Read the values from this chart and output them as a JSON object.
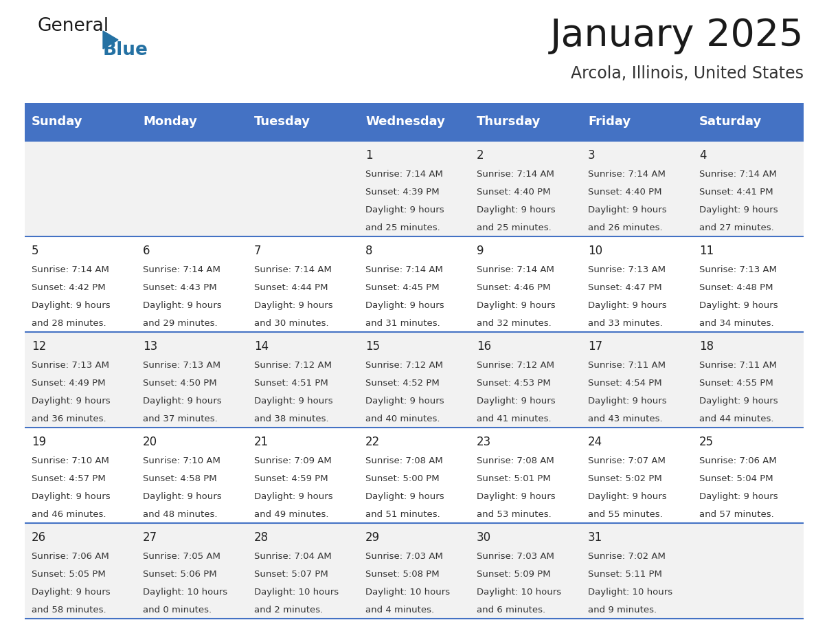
{
  "title": "January 2025",
  "subtitle": "Arcola, Illinois, United States",
  "header_bg": "#4472C4",
  "header_text_color": "#FFFFFF",
  "days_of_week": [
    "Sunday",
    "Monday",
    "Tuesday",
    "Wednesday",
    "Thursday",
    "Friday",
    "Saturday"
  ],
  "cell_bg_odd": "#F2F2F2",
  "cell_bg_even": "#FFFFFF",
  "separator_color": "#4472C4",
  "calendar": [
    [
      {
        "day": "",
        "sunrise": "",
        "sunset": "",
        "daylight": ""
      },
      {
        "day": "",
        "sunrise": "",
        "sunset": "",
        "daylight": ""
      },
      {
        "day": "",
        "sunrise": "",
        "sunset": "",
        "daylight": ""
      },
      {
        "day": "1",
        "sunrise": "7:14 AM",
        "sunset": "4:39 PM",
        "daylight": "9 hours and 25 minutes."
      },
      {
        "day": "2",
        "sunrise": "7:14 AM",
        "sunset": "4:40 PM",
        "daylight": "9 hours and 25 minutes."
      },
      {
        "day": "3",
        "sunrise": "7:14 AM",
        "sunset": "4:40 PM",
        "daylight": "9 hours and 26 minutes."
      },
      {
        "day": "4",
        "sunrise": "7:14 AM",
        "sunset": "4:41 PM",
        "daylight": "9 hours and 27 minutes."
      }
    ],
    [
      {
        "day": "5",
        "sunrise": "7:14 AM",
        "sunset": "4:42 PM",
        "daylight": "9 hours and 28 minutes."
      },
      {
        "day": "6",
        "sunrise": "7:14 AM",
        "sunset": "4:43 PM",
        "daylight": "9 hours and 29 minutes."
      },
      {
        "day": "7",
        "sunrise": "7:14 AM",
        "sunset": "4:44 PM",
        "daylight": "9 hours and 30 minutes."
      },
      {
        "day": "8",
        "sunrise": "7:14 AM",
        "sunset": "4:45 PM",
        "daylight": "9 hours and 31 minutes."
      },
      {
        "day": "9",
        "sunrise": "7:14 AM",
        "sunset": "4:46 PM",
        "daylight": "9 hours and 32 minutes."
      },
      {
        "day": "10",
        "sunrise": "7:13 AM",
        "sunset": "4:47 PM",
        "daylight": "9 hours and 33 minutes."
      },
      {
        "day": "11",
        "sunrise": "7:13 AM",
        "sunset": "4:48 PM",
        "daylight": "9 hours and 34 minutes."
      }
    ],
    [
      {
        "day": "12",
        "sunrise": "7:13 AM",
        "sunset": "4:49 PM",
        "daylight": "9 hours and 36 minutes."
      },
      {
        "day": "13",
        "sunrise": "7:13 AM",
        "sunset": "4:50 PM",
        "daylight": "9 hours and 37 minutes."
      },
      {
        "day": "14",
        "sunrise": "7:12 AM",
        "sunset": "4:51 PM",
        "daylight": "9 hours and 38 minutes."
      },
      {
        "day": "15",
        "sunrise": "7:12 AM",
        "sunset": "4:52 PM",
        "daylight": "9 hours and 40 minutes."
      },
      {
        "day": "16",
        "sunrise": "7:12 AM",
        "sunset": "4:53 PM",
        "daylight": "9 hours and 41 minutes."
      },
      {
        "day": "17",
        "sunrise": "7:11 AM",
        "sunset": "4:54 PM",
        "daylight": "9 hours and 43 minutes."
      },
      {
        "day": "18",
        "sunrise": "7:11 AM",
        "sunset": "4:55 PM",
        "daylight": "9 hours and 44 minutes."
      }
    ],
    [
      {
        "day": "19",
        "sunrise": "7:10 AM",
        "sunset": "4:57 PM",
        "daylight": "9 hours and 46 minutes."
      },
      {
        "day": "20",
        "sunrise": "7:10 AM",
        "sunset": "4:58 PM",
        "daylight": "9 hours and 48 minutes."
      },
      {
        "day": "21",
        "sunrise": "7:09 AM",
        "sunset": "4:59 PM",
        "daylight": "9 hours and 49 minutes."
      },
      {
        "day": "22",
        "sunrise": "7:08 AM",
        "sunset": "5:00 PM",
        "daylight": "9 hours and 51 minutes."
      },
      {
        "day": "23",
        "sunrise": "7:08 AM",
        "sunset": "5:01 PM",
        "daylight": "9 hours and 53 minutes."
      },
      {
        "day": "24",
        "sunrise": "7:07 AM",
        "sunset": "5:02 PM",
        "daylight": "9 hours and 55 minutes."
      },
      {
        "day": "25",
        "sunrise": "7:06 AM",
        "sunset": "5:04 PM",
        "daylight": "9 hours and 57 minutes."
      }
    ],
    [
      {
        "day": "26",
        "sunrise": "7:06 AM",
        "sunset": "5:05 PM",
        "daylight": "9 hours and 58 minutes."
      },
      {
        "day": "27",
        "sunrise": "7:05 AM",
        "sunset": "5:06 PM",
        "daylight": "10 hours and 0 minutes."
      },
      {
        "day": "28",
        "sunrise": "7:04 AM",
        "sunset": "5:07 PM",
        "daylight": "10 hours and 2 minutes."
      },
      {
        "day": "29",
        "sunrise": "7:03 AM",
        "sunset": "5:08 PM",
        "daylight": "10 hours and 4 minutes."
      },
      {
        "day": "30",
        "sunrise": "7:03 AM",
        "sunset": "5:09 PM",
        "daylight": "10 hours and 6 minutes."
      },
      {
        "day": "31",
        "sunrise": "7:02 AM",
        "sunset": "5:11 PM",
        "daylight": "10 hours and 9 minutes."
      },
      {
        "day": "",
        "sunrise": "",
        "sunset": "",
        "daylight": ""
      }
    ]
  ],
  "logo_general_color": "#1a1a1a",
  "logo_blue_color": "#2471A3",
  "logo_triangle_color": "#2471A3",
  "title_color": "#1a1a1a",
  "subtitle_color": "#333333",
  "day_number_color": "#222222",
  "info_color": "#333333"
}
